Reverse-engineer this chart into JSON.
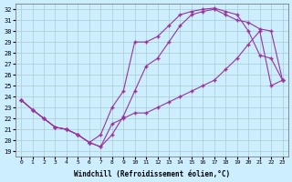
{
  "xlabel": "Windchill (Refroidissement éolien,°C)",
  "bg_color": "#cceeff",
  "grid_color": "#aacccc",
  "line_color": "#993399",
  "xlim": [
    -0.5,
    23.5
  ],
  "ylim": [
    18.5,
    32.5
  ],
  "xticks": [
    0,
    1,
    2,
    3,
    4,
    5,
    6,
    7,
    8,
    9,
    10,
    11,
    12,
    13,
    14,
    15,
    16,
    17,
    18,
    19,
    20,
    21,
    22,
    23
  ],
  "yticks": [
    19,
    20,
    21,
    22,
    23,
    24,
    25,
    26,
    27,
    28,
    29,
    30,
    31,
    32
  ],
  "line1_x": [
    0,
    1,
    2,
    3,
    4,
    5,
    6,
    7,
    8,
    9,
    10,
    11,
    12,
    13,
    14,
    15,
    16,
    17,
    18,
    19,
    20,
    21,
    22,
    23
  ],
  "line1_y": [
    23.7,
    22.8,
    22.0,
    21.2,
    21.0,
    20.5,
    19.8,
    20.5,
    23.0,
    24.5,
    29.0,
    29.0,
    29.5,
    30.5,
    31.5,
    31.8,
    32.0,
    32.1,
    31.8,
    31.5,
    30.0,
    27.8,
    27.5,
    25.5
  ],
  "line2_x": [
    0,
    1,
    2,
    3,
    4,
    5,
    6,
    7,
    8,
    9,
    10,
    11,
    12,
    13,
    14,
    15,
    16,
    17,
    18,
    19,
    20,
    21,
    22,
    23
  ],
  "line2_y": [
    23.7,
    22.8,
    22.0,
    21.2,
    21.0,
    20.5,
    19.8,
    19.4,
    20.5,
    22.2,
    24.5,
    26.8,
    27.5,
    29.0,
    30.5,
    31.5,
    31.8,
    32.0,
    31.5,
    31.0,
    30.8,
    30.2,
    30.0,
    25.5
  ],
  "line3_x": [
    0,
    1,
    2,
    3,
    4,
    5,
    6,
    7,
    8,
    9,
    10,
    11,
    12,
    13,
    14,
    15,
    16,
    17,
    18,
    19,
    20,
    21,
    22,
    23
  ],
  "line3_y": [
    23.7,
    22.8,
    22.0,
    21.2,
    21.0,
    20.5,
    19.8,
    19.4,
    21.5,
    22.0,
    22.5,
    22.5,
    23.0,
    23.5,
    24.0,
    24.5,
    25.0,
    25.5,
    26.5,
    27.5,
    28.8,
    30.0,
    25.0,
    25.5
  ]
}
